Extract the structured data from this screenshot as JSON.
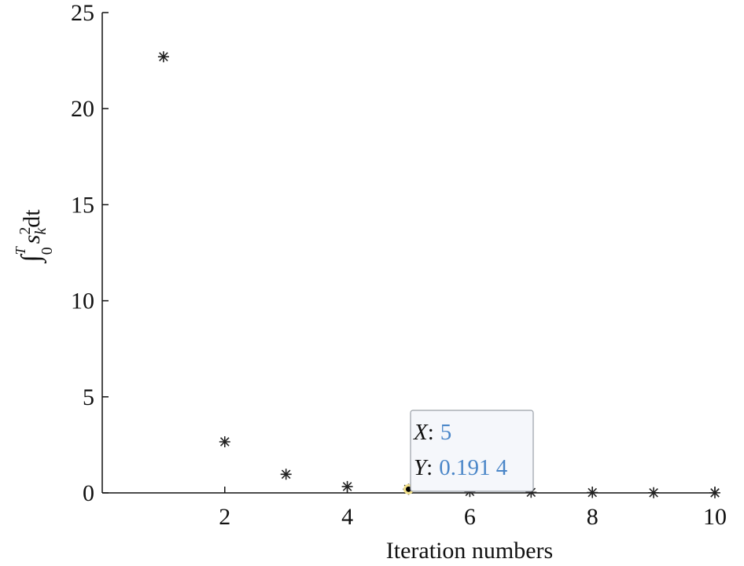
{
  "chart_data": {
    "type": "scatter",
    "xlabel": "Iteration numbers",
    "ylabel": {
      "integral": "∫",
      "upper": "T",
      "lower": "0",
      "var": "s",
      "sup": "2",
      "sub": "k",
      "diff": "dt"
    },
    "x": [
      1,
      2,
      3,
      4,
      5,
      6,
      7,
      8,
      9,
      10
    ],
    "series": [
      {
        "color": "#222222",
        "marker": "*",
        "values": [
          22.7,
          2.66,
          0.97,
          0.33,
          0.1914,
          0.07,
          0.03,
          0.02,
          0.01,
          0.005
        ]
      }
    ],
    "xlim": [
      0,
      10
    ],
    "xticks": [
      2,
      4,
      6,
      8,
      10
    ],
    "ylim": [
      0,
      25
    ],
    "yticks": [
      0,
      5,
      10,
      15,
      20,
      25
    ],
    "datatip": {
      "index": 4,
      "x_name": "X",
      "y_name": "Y",
      "separator": ":",
      "x": 5,
      "y": "0.191 4"
    }
  }
}
